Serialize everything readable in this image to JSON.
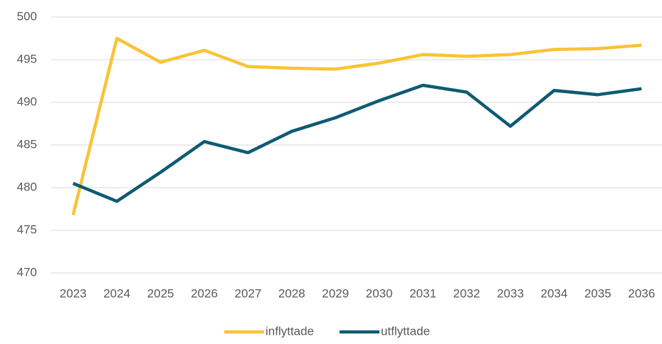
{
  "chart_data": {
    "type": "line",
    "categories": [
      "2023",
      "2024",
      "2025",
      "2026",
      "2027",
      "2028",
      "2029",
      "2030",
      "2031",
      "2032",
      "2033",
      "2034",
      "2035",
      "2036"
    ],
    "series": [
      {
        "name": "inflyttade",
        "color": "#fbc236",
        "values": [
          476.8,
          497.5,
          494.7,
          496.1,
          494.2,
          494.0,
          493.9,
          494.6,
          495.6,
          495.4,
          495.6,
          496.2,
          496.3,
          496.7
        ]
      },
      {
        "name": "utflyttade",
        "color": "#0e5a73",
        "values": [
          480.5,
          478.4,
          481.8,
          485.4,
          484.1,
          486.6,
          488.2,
          490.2,
          492.0,
          491.2,
          487.2,
          491.4,
          490.9,
          491.6
        ]
      }
    ],
    "ylim": [
      470,
      500
    ],
    "yticks": [
      470,
      475,
      480,
      485,
      490,
      495,
      500
    ],
    "grid": true,
    "legend": "bottom"
  }
}
